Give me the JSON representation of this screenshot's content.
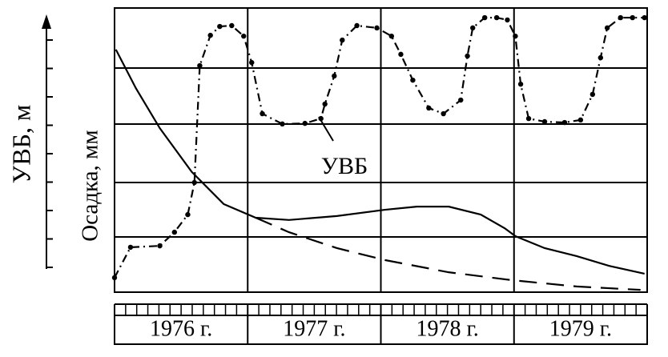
{
  "chart_data": {
    "type": "line",
    "y_label_left": "УВБ, м",
    "y_label_right": "Осадка, мм",
    "annotation": "УВБ",
    "categories": [
      "1976 г.",
      "1977 г.",
      "1978 г.",
      "1979 г."
    ],
    "xlim": [
      1976,
      1980
    ],
    "ylim": [
      0,
      100
    ],
    "grid": true,
    "series": [
      {
        "color": "#000000",
        "style": "dashdot",
        "markers": true,
        "x": [
          1976.0,
          1976.12,
          1976.34,
          1976.45,
          1976.55,
          1976.6,
          1976.64,
          1976.72,
          1976.79,
          1976.88,
          1976.97,
          1977.03,
          1977.11,
          1977.26,
          1977.43,
          1977.55,
          1977.58,
          1977.65,
          1977.71,
          1977.82,
          1977.97,
          1978.08,
          1978.15,
          1978.24,
          1978.36,
          1978.47,
          1978.6,
          1978.65,
          1978.69,
          1978.78,
          1978.87,
          1978.95,
          1979.01,
          1979.05,
          1979.11,
          1979.23,
          1979.38,
          1979.5,
          1979.59,
          1979.65,
          1979.7,
          1979.8,
          1979.89,
          1979.98
        ],
        "values": [
          5.1,
          15.8,
          16.3,
          21.1,
          27.3,
          38.6,
          79.7,
          90.4,
          93.5,
          93.8,
          90.1,
          80.8,
          62.8,
          59.2,
          59.4,
          61.1,
          66.2,
          76.1,
          88.7,
          93.8,
          93.0,
          90.1,
          83.7,
          74.6,
          64.8,
          62.8,
          67.6,
          83.1,
          93.0,
          96.6,
          96.6,
          95.8,
          90.1,
          73.2,
          61.1,
          60.0,
          59.7,
          60.6,
          69.6,
          82.5,
          93.0,
          96.6,
          96.6,
          96.6
        ]
      },
      {
        "color": "#000000",
        "style": "solid",
        "markers": false,
        "x": [
          1976.01,
          1976.16,
          1976.34,
          1976.58,
          1976.82,
          1977.06,
          1977.31,
          1977.67,
          1978.03,
          1978.27,
          1978.51,
          1978.75,
          1978.93,
          1979.01,
          1979.23,
          1979.47,
          1979.71,
          1979.98
        ],
        "values": [
          85.4,
          71.8,
          57.7,
          42.3,
          31.0,
          26.2,
          25.4,
          26.8,
          29.0,
          30.1,
          30.1,
          27.3,
          22.5,
          19.7,
          15.5,
          12.7,
          9.3,
          6.5
        ]
      },
      {
        "color": "#000000",
        "style": "dashed",
        "markers": false,
        "x": [
          1977.06,
          1977.31,
          1977.67,
          1978.03,
          1978.51,
          1978.99,
          1979.47,
          1979.95
        ],
        "values": [
          26.2,
          21.1,
          15.5,
          11.3,
          7.0,
          4.2,
          2.0,
          0.8
        ]
      }
    ]
  }
}
